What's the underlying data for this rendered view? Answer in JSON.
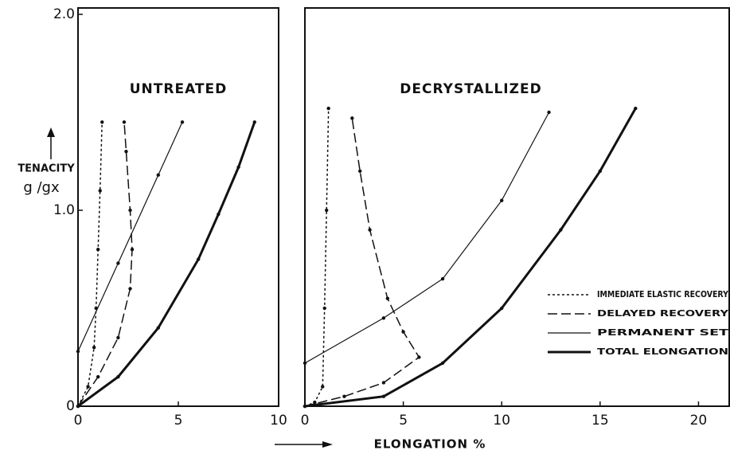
{
  "chart_data": [
    {
      "type": "line",
      "title": "UNTREATED",
      "y_label": "TENACITY",
      "y_unit": "g /gx",
      "xlim": [
        0,
        10
      ],
      "ylim": [
        0,
        2.0
      ],
      "xticks": [
        0,
        5,
        10
      ],
      "yticks": [
        0,
        {
          "value": 1,
          "label": "1.0"
        },
        {
          "value": 2,
          "label": "2.0"
        }
      ],
      "series": [
        {
          "name": "IMMEDIATE ELASTIC RECOVERY",
          "color": "#111",
          "line_style": "dotted",
          "line_width": 1.5,
          "x": [
            0,
            0.5,
            0.8,
            0.9,
            1.0,
            1.1,
            1.2
          ],
          "values": [
            0,
            0.1,
            0.3,
            0.5,
            0.8,
            1.1,
            1.45
          ]
        },
        {
          "name": "DELAYED RECOVERY",
          "color": "#111",
          "line_style": "dashed",
          "line_width": 1.5,
          "x": [
            0,
            1,
            2,
            2.6,
            2.7,
            2.6,
            2.4,
            2.3
          ],
          "values": [
            0,
            0.15,
            0.35,
            0.6,
            0.8,
            1.0,
            1.3,
            1.45
          ]
        },
        {
          "name": "PERMANENT SET",
          "color": "#111",
          "line_style": "solid",
          "line_width": 1.2,
          "x": [
            0,
            2,
            4,
            5.2
          ],
          "values": [
            0.28,
            0.73,
            1.18,
            1.45
          ]
        },
        {
          "name": "TOTAL ELONGATION",
          "color": "#111",
          "line_style": "solid",
          "line_width": 3,
          "x": [
            0,
            2,
            4,
            6,
            7,
            8,
            8.8
          ],
          "values": [
            0,
            0.15,
            0.4,
            0.75,
            0.98,
            1.22,
            1.45
          ]
        }
      ]
    },
    {
      "type": "line",
      "title": "DECRYSTALLIZED",
      "x_label": "ELONGATION %",
      "xlim": [
        0,
        21.6
      ],
      "ylim": [
        0,
        2.0
      ],
      "xticks": [
        0,
        5,
        10,
        15,
        20
      ],
      "legend": "lower right",
      "series": [
        {
          "name": "IMMEDIATE ELASTIC RECOVERY",
          "color": "#111",
          "line_style": "dotted",
          "line_width": 1.5,
          "x": [
            0,
            0.5,
            0.9,
            1.0,
            1.1,
            1.2
          ],
          "values": [
            0,
            0.02,
            0.1,
            0.5,
            1.0,
            1.52
          ]
        },
        {
          "name": "DELAYED RECOVERY",
          "color": "#111",
          "line_style": "dashed",
          "line_width": 1.5,
          "x": [
            0,
            2,
            4,
            5.8,
            5,
            4.2,
            3.3,
            2.8,
            2.4
          ],
          "values": [
            0,
            0.05,
            0.12,
            0.25,
            0.38,
            0.55,
            0.9,
            1.2,
            1.47
          ]
        },
        {
          "name": "PERMANENT SET",
          "color": "#111",
          "line_style": "solid",
          "line_width": 1.2,
          "x": [
            0,
            4,
            7,
            10,
            12.4
          ],
          "values": [
            0.22,
            0.45,
            0.65,
            1.05,
            1.5
          ]
        },
        {
          "name": "TOTAL ELONGATION",
          "color": "#111",
          "line_style": "solid",
          "line_width": 3,
          "x": [
            0,
            4,
            7,
            10,
            13,
            15,
            16.8
          ],
          "values": [
            0,
            0.05,
            0.22,
            0.5,
            0.9,
            1.2,
            1.52
          ]
        }
      ]
    }
  ]
}
